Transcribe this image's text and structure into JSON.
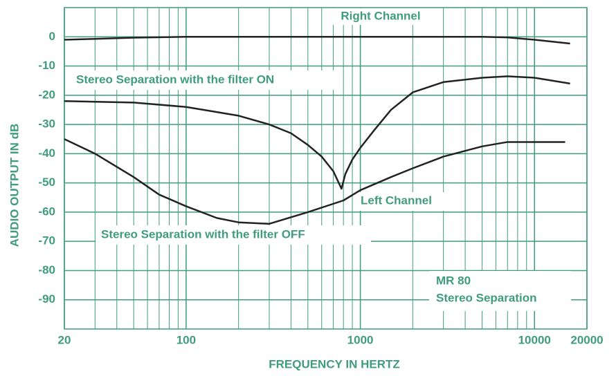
{
  "chart_data": {
    "type": "line",
    "x_label": "FREQUENCY IN HERTZ",
    "y_label": "AUDIO OUTPUT IN dB",
    "xscale": "log",
    "xlim": [
      20,
      20000
    ],
    "ylim": [
      -100,
      10
    ],
    "xticks": [
      20,
      100,
      1000,
      10000,
      20000
    ],
    "yticks": [
      0,
      -10,
      -20,
      -30,
      -40,
      -50,
      -60,
      -70,
      -80,
      -90
    ],
    "grid": true,
    "grid_color": "#3f9c7c",
    "annotations": [
      "Left Channel",
      "MR 80",
      "Stereo Separation"
    ],
    "series": [
      {
        "name": "Right Channel",
        "color": "#222222",
        "x": [
          20,
          30,
          50,
          100,
          1000,
          5000,
          7000,
          10000,
          16000
        ],
        "values": [
          -1,
          -0.7,
          -0.3,
          0,
          0,
          0,
          -0.2,
          -1,
          -2.3
        ]
      },
      {
        "name": "Stereo Separation with the filter ON",
        "color": "#222222",
        "x": [
          20,
          50,
          100,
          200,
          300,
          400,
          500,
          600,
          700,
          780,
          820,
          900,
          1000,
          1200,
          1500,
          2000,
          3000,
          5000,
          7000,
          10000,
          16000
        ],
        "values": [
          -22,
          -22.5,
          -24,
          -27,
          -30,
          -33,
          -37,
          -41,
          -46,
          -52,
          -47,
          -42,
          -38,
          -32,
          -25,
          -19,
          -15.5,
          -14,
          -13.5,
          -14,
          -16
        ]
      },
      {
        "name": "Stereo Separation with the filter OFF",
        "color": "#222222",
        "x": [
          20,
          30,
          50,
          70,
          100,
          150,
          200,
          300,
          500,
          800,
          1000,
          1500,
          2000,
          3000,
          5000,
          7000,
          10000,
          15000
        ],
        "values": [
          -35,
          -40,
          -48,
          -54,
          -58,
          -62,
          -63.5,
          -64,
          -60,
          -56,
          -52.5,
          -48,
          -45,
          -41,
          -37.5,
          -36,
          -36,
          -36
        ]
      }
    ]
  }
}
